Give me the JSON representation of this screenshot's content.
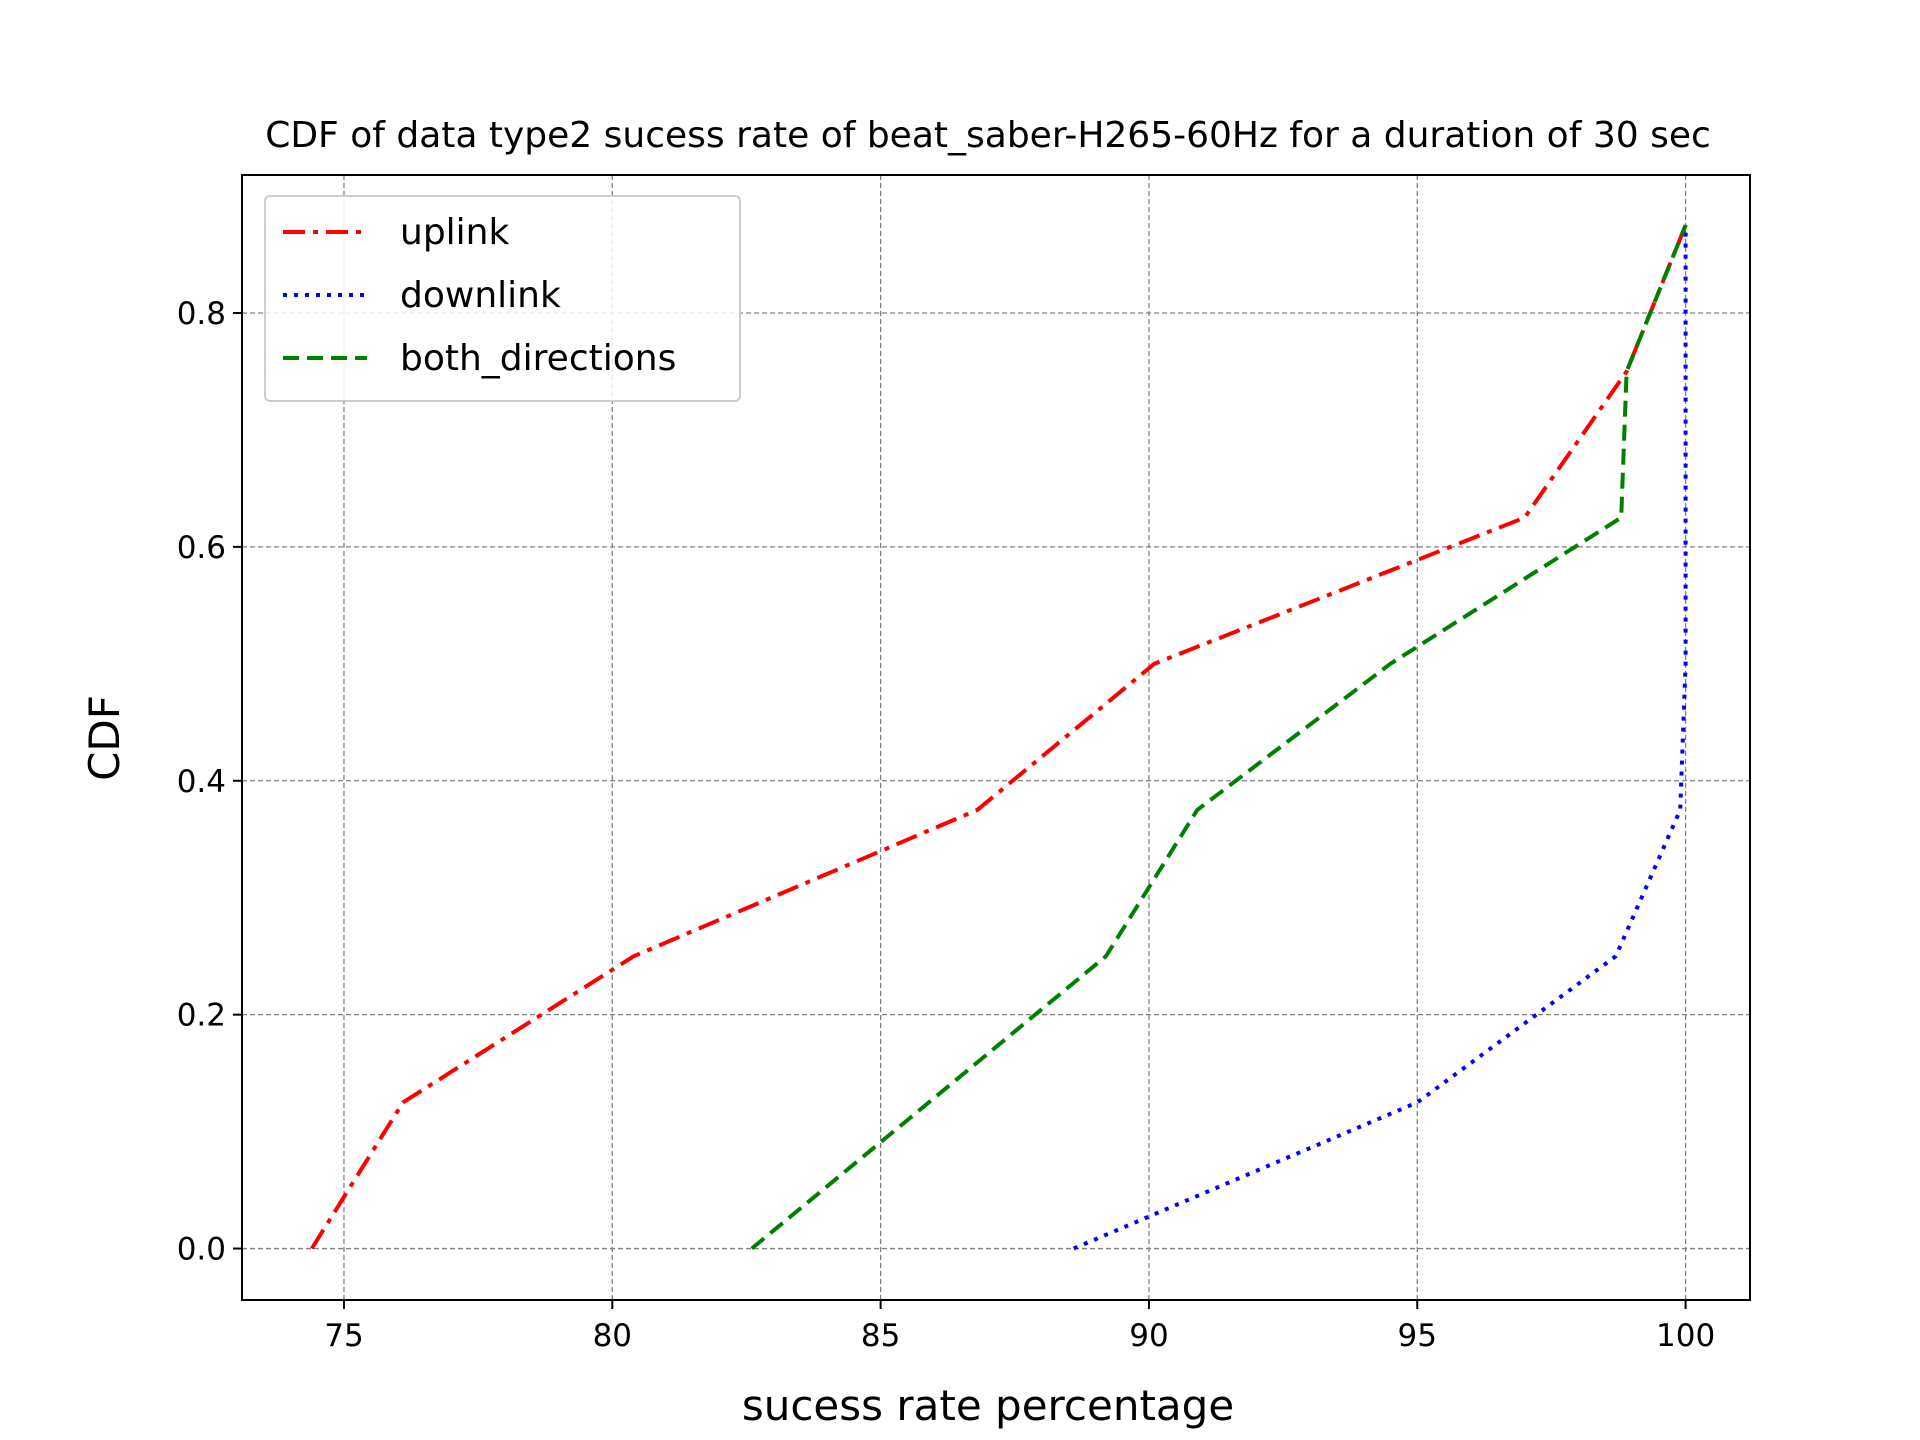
{
  "chart_data": {
    "type": "line",
    "title": "CDF of data type2 sucess rate of beat_saber-H265-60Hz for a duration of 30 sec",
    "xlabel": "sucess rate percentage",
    "ylabel": "CDF",
    "xlim": [
      73.1,
      101.2
    ],
    "ylim": [
      -0.044,
      0.918
    ],
    "xticks": [
      75,
      80,
      85,
      90,
      95,
      100
    ],
    "xtick_labels": [
      "75",
      "80",
      "85",
      "90",
      "95",
      "100"
    ],
    "yticks": [
      0.0,
      0.2,
      0.4,
      0.6,
      0.8
    ],
    "ytick_labels": [
      "0.0",
      "0.2",
      "0.4",
      "0.6",
      "0.8"
    ],
    "grid": true,
    "legend_position": "top-left",
    "series": [
      {
        "name": "uplink",
        "color": "#ff0000",
        "style": "dashdot",
        "points": [
          [
            74.4,
            0.0
          ],
          [
            76.1,
            0.125
          ],
          [
            80.4,
            0.25
          ],
          [
            86.8,
            0.375
          ],
          [
            90.1,
            0.5
          ],
          [
            97.0,
            0.625
          ],
          [
            98.9,
            0.75
          ],
          [
            100.0,
            0.875
          ]
        ]
      },
      {
        "name": "downlink",
        "color": "#0000ff",
        "style": "dotted",
        "points": [
          [
            88.6,
            0.0
          ],
          [
            95.0,
            0.125
          ],
          [
            98.7,
            0.25
          ],
          [
            99.9,
            0.375
          ],
          [
            100.0,
            0.5
          ],
          [
            100.0,
            0.625
          ],
          [
            100.0,
            0.75
          ],
          [
            100.0,
            0.875
          ]
        ]
      },
      {
        "name": "both_directions",
        "color": "#008000",
        "style": "dashed",
        "points": [
          [
            82.6,
            0.0
          ],
          [
            89.2,
            0.25
          ],
          [
            90.9,
            0.375
          ],
          [
            94.5,
            0.5
          ],
          [
            98.8,
            0.625
          ],
          [
            98.9,
            0.75
          ],
          [
            100.0,
            0.875
          ]
        ]
      }
    ]
  }
}
